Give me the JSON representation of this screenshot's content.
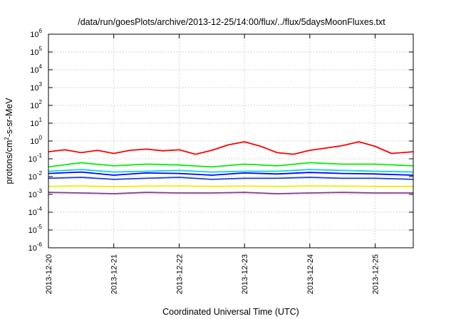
{
  "chart_data": {
    "type": "line",
    "title": "/data/run/goesPlots/archive/2013-12-25/14:00/flux/../flux/5daysMoonFluxes.txt",
    "xlabel": "Coordinated Universal Time (UTC)",
    "ylabel": {
      "base": "protons/cm",
      "exp": "2",
      "rest": "-s-sr-MeV"
    },
    "yscale": "log",
    "ylim": [
      1e-06,
      1000000.0
    ],
    "xlim": [
      "2013-12-20T00:00",
      "2013-12-25T14:00"
    ],
    "y_ticks": [
      {
        "value": 1e-06,
        "base": "10",
        "exp": "-6"
      },
      {
        "value": 1e-05,
        "base": "10",
        "exp": "-5"
      },
      {
        "value": 0.0001,
        "base": "10",
        "exp": "-4"
      },
      {
        "value": 0.001,
        "base": "10",
        "exp": "-3"
      },
      {
        "value": 0.01,
        "base": "10",
        "exp": "-2"
      },
      {
        "value": 0.1,
        "base": "10",
        "exp": "-1"
      },
      {
        "value": 1.0,
        "base": "10",
        "exp": "0"
      },
      {
        "value": 10.0,
        "base": "10",
        "exp": "1"
      },
      {
        "value": 100.0,
        "base": "10",
        "exp": "2"
      },
      {
        "value": 1000.0,
        "base": "10",
        "exp": "3"
      },
      {
        "value": 10000.0,
        "base": "10",
        "exp": "4"
      },
      {
        "value": 100000.0,
        "base": "10",
        "exp": "5"
      },
      {
        "value": 1000000.0,
        "base": "10",
        "exp": "6"
      }
    ],
    "x_ticks": [
      "2013-12-20",
      "2013-12-21",
      "2013-12-22",
      "2013-12-23",
      "2013-12-24",
      "2013-12-25"
    ],
    "grid": true,
    "legend": "none",
    "series": [
      {
        "color": "#ff0000",
        "x": [
          "2013-12-20T00:00",
          "2013-12-20T06:00",
          "2013-12-20T12:00",
          "2013-12-20T18:00",
          "2013-12-21T00:00",
          "2013-12-21T06:00",
          "2013-12-21T12:00",
          "2013-12-21T18:00",
          "2013-12-22T00:00",
          "2013-12-22T06:00",
          "2013-12-22T12:00",
          "2013-12-22T18:00",
          "2013-12-23T00:00",
          "2013-12-23T06:00",
          "2013-12-23T12:00",
          "2013-12-23T18:00",
          "2013-12-24T00:00",
          "2013-12-24T06:00",
          "2013-12-24T12:00",
          "2013-12-24T18:00",
          "2013-12-25T00:00",
          "2013-12-25T06:00",
          "2013-12-25T14:00"
        ],
        "y": [
          0.25,
          0.32,
          0.22,
          0.3,
          0.2,
          0.3,
          0.35,
          0.28,
          0.32,
          0.18,
          0.3,
          0.6,
          0.9,
          0.5,
          0.22,
          0.18,
          0.3,
          0.4,
          0.55,
          0.9,
          0.5,
          0.2,
          0.25
        ]
      },
      {
        "color": "#00ee00",
        "x": [
          "2013-12-20T00:00",
          "2013-12-20T12:00",
          "2013-12-21T00:00",
          "2013-12-21T12:00",
          "2013-12-22T00:00",
          "2013-12-22T12:00",
          "2013-12-23T00:00",
          "2013-12-23T12:00",
          "2013-12-24T00:00",
          "2013-12-24T12:00",
          "2013-12-25T00:00",
          "2013-12-25T14:00"
        ],
        "y": [
          0.035,
          0.06,
          0.04,
          0.05,
          0.045,
          0.035,
          0.05,
          0.04,
          0.06,
          0.05,
          0.05,
          0.04
        ]
      },
      {
        "color": "#00d8d8",
        "x": [
          "2013-12-20T00:00",
          "2013-12-20T12:00",
          "2013-12-21T00:00",
          "2013-12-21T12:00",
          "2013-12-22T00:00",
          "2013-12-22T12:00",
          "2013-12-23T00:00",
          "2013-12-23T12:00",
          "2013-12-24T00:00",
          "2013-12-24T12:00",
          "2013-12-25T00:00",
          "2013-12-25T14:00"
        ],
        "y": [
          0.02,
          0.025,
          0.018,
          0.02,
          0.022,
          0.018,
          0.02,
          0.02,
          0.025,
          0.022,
          0.02,
          0.018
        ]
      },
      {
        "color": "#0000ff",
        "x": [
          "2013-12-20T00:00",
          "2013-12-20T12:00",
          "2013-12-21T00:00",
          "2013-12-21T12:00",
          "2013-12-22T00:00",
          "2013-12-22T12:00",
          "2013-12-23T00:00",
          "2013-12-23T12:00",
          "2013-12-24T00:00",
          "2013-12-24T12:00",
          "2013-12-25T00:00",
          "2013-12-25T14:00"
        ],
        "y": [
          0.015,
          0.018,
          0.012,
          0.016,
          0.015,
          0.012,
          0.016,
          0.014,
          0.017,
          0.015,
          0.014,
          0.012
        ]
      },
      {
        "color": "#1a3fd6",
        "x": [
          "2013-12-20T00:00",
          "2013-12-20T12:00",
          "2013-12-21T00:00",
          "2013-12-21T12:00",
          "2013-12-22T00:00",
          "2013-12-22T12:00",
          "2013-12-23T00:00",
          "2013-12-23T12:00",
          "2013-12-24T00:00",
          "2013-12-24T12:00",
          "2013-12-25T00:00",
          "2013-12-25T14:00"
        ],
        "y": [
          0.008,
          0.009,
          0.007,
          0.008,
          0.009,
          0.007,
          0.008,
          0.008,
          0.009,
          0.008,
          0.008,
          0.007
        ]
      },
      {
        "color": "#eeee00",
        "x": [
          "2013-12-20T00:00",
          "2013-12-20T12:00",
          "2013-12-21T00:00",
          "2013-12-21T12:00",
          "2013-12-22T00:00",
          "2013-12-22T12:00",
          "2013-12-23T00:00",
          "2013-12-23T12:00",
          "2013-12-24T00:00",
          "2013-12-24T12:00",
          "2013-12-25T00:00",
          "2013-12-25T14:00"
        ],
        "y": [
          0.0028,
          0.003,
          0.0027,
          0.0029,
          0.003,
          0.0028,
          0.0029,
          0.0028,
          0.003,
          0.0029,
          0.0028,
          0.0028
        ]
      },
      {
        "color": "#8b3a8b",
        "x": [
          "2013-12-20T00:00",
          "2013-12-20T12:00",
          "2013-12-21T00:00",
          "2013-12-21T12:00",
          "2013-12-22T00:00",
          "2013-12-22T12:00",
          "2013-12-23T00:00",
          "2013-12-23T12:00",
          "2013-12-24T00:00",
          "2013-12-24T12:00",
          "2013-12-25T00:00",
          "2013-12-25T14:00"
        ],
        "y": [
          0.0013,
          0.0012,
          0.0011,
          0.0013,
          0.0012,
          0.0012,
          0.0013,
          0.0011,
          0.0012,
          0.0013,
          0.0012,
          0.0012
        ]
      }
    ]
  }
}
